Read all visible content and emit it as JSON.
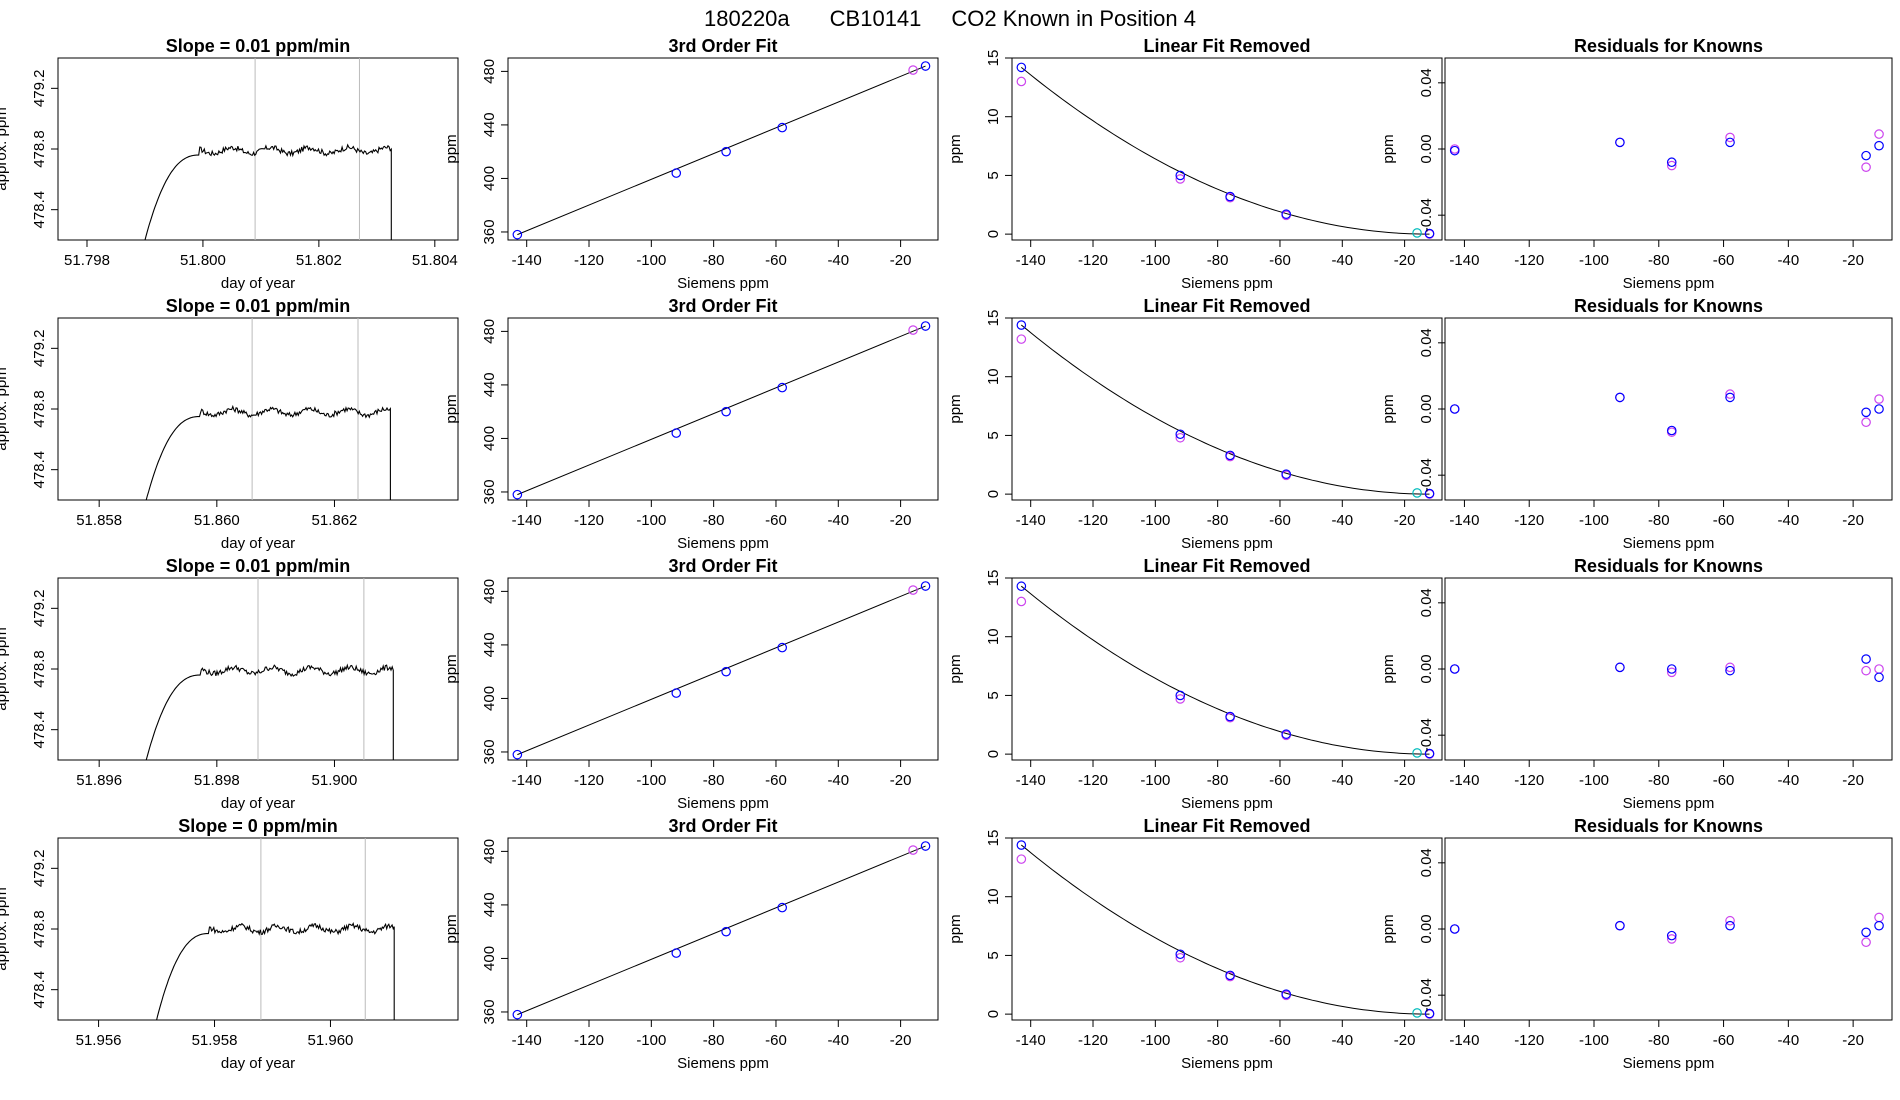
{
  "figure": {
    "title_date": "180220a",
    "title_tank": "CB10141",
    "title_text": "CO2 Known in Position  4"
  },
  "colors": {
    "primary": "#0000ff",
    "secondary": "#cc44ee",
    "tertiary": "#00bbbb",
    "line": "#000000",
    "vline": "#bbbbbb"
  },
  "chart_data": [
    {
      "type": "line",
      "row": 0,
      "panel": "timeseries",
      "title": "Slope =  0.01  ppm/min",
      "xlabel": "day of year",
      "ylabel": "approx. ppm",
      "xlim": [
        51.7975,
        51.8044
      ],
      "ylim": [
        478.2,
        479.4
      ],
      "xticks": [
        "51.798",
        "51.800",
        "51.802",
        "51.804"
      ],
      "yticks": [
        "478.4",
        "478.8",
        "479.2"
      ],
      "vlines": [
        51.8009,
        51.8027
      ],
      "start": 51.799,
      "end": 51.80325,
      "plateau": 478.79
    },
    {
      "type": "scatter",
      "row": 0,
      "panel": "fit",
      "title": "3rd Order Fit",
      "xlabel": "Siemens ppm",
      "ylabel": "ppm",
      "xlim": [
        -146,
        -8
      ],
      "ylim": [
        354,
        490
      ],
      "xticks": [
        "-140",
        "-120",
        "-100",
        "-80",
        "-60",
        "-40",
        "-20"
      ],
      "yticks": [
        "360",
        "400",
        "440",
        "480"
      ],
      "points": [
        [
          -143,
          358
        ],
        [
          -92,
          404
        ],
        [
          -76,
          420
        ],
        [
          -58,
          438
        ],
        [
          -12,
          484
        ],
        [
          -16,
          481
        ]
      ]
    },
    {
      "type": "scatter",
      "row": 0,
      "panel": "linear_removed",
      "title": "Linear Fit Removed",
      "xlabel": "Siemens ppm",
      "ylabel": "ppm",
      "xlim": [
        -146,
        -8
      ],
      "ylim": [
        -0.5,
        15
      ],
      "xticks": [
        "-140",
        "-120",
        "-100",
        "-80",
        "-60",
        "-40",
        "-20"
      ],
      "yticks": [
        "0",
        "5",
        "10",
        "15"
      ],
      "points_primary": [
        [
          -143,
          14.2
        ],
        [
          -92,
          5.0
        ],
        [
          -76,
          3.2
        ],
        [
          -58,
          1.7
        ],
        [
          -12,
          0.05
        ]
      ],
      "points_secondary": [
        [
          -143,
          13.0
        ],
        [
          -92,
          4.7
        ],
        [
          -76,
          3.1
        ],
        [
          -58,
          1.6
        ],
        [
          -12,
          0.0
        ]
      ],
      "points_tertiary": [
        [
          -16,
          0.1
        ]
      ]
    },
    {
      "type": "scatter",
      "row": 0,
      "panel": "residuals",
      "title": "Residuals for Knowns",
      "xlabel": "Siemens ppm",
      "ylabel": "ppm",
      "xlim": [
        -146,
        -8
      ],
      "ylim": [
        -0.055,
        0.055
      ],
      "xticks": [
        "-140",
        "-120",
        "-100",
        "-80",
        "-60",
        "-40",
        "-20"
      ],
      "yticks": [
        "-0.04",
        "0.00",
        "0.04"
      ],
      "points_primary": [
        [
          -143,
          -0.001
        ],
        [
          -92,
          0.004
        ],
        [
          -76,
          -0.008
        ],
        [
          -58,
          0.004
        ],
        [
          -16,
          -0.004
        ],
        [
          -12,
          0.002
        ]
      ],
      "points_secondary": [
        [
          -143,
          0.0
        ],
        [
          -92,
          0.004
        ],
        [
          -76,
          -0.01
        ],
        [
          -58,
          0.007
        ],
        [
          -16,
          -0.011
        ],
        [
          -12,
          0.009
        ]
      ]
    },
    {
      "type": "line",
      "row": 1,
      "panel": "timeseries",
      "title": "Slope =  0.01  ppm/min",
      "xlabel": "day of year",
      "ylabel": "approx. ppm",
      "xlim": [
        51.8573,
        51.8641
      ],
      "ylim": [
        478.2,
        479.4
      ],
      "xticks": [
        "51.858",
        "51.860",
        "51.862"
      ],
      "yticks": [
        "478.4",
        "478.8",
        "479.2"
      ],
      "vlines": [
        51.8606,
        51.8624
      ],
      "start": 51.8588,
      "end": 51.86295,
      "plateau": 478.78
    },
    {
      "type": "scatter",
      "row": 1,
      "panel": "fit",
      "title": "3rd Order Fit",
      "xlabel": "Siemens ppm",
      "ylabel": "ppm",
      "xlim": [
        -146,
        -8
      ],
      "ylim": [
        354,
        490
      ],
      "xticks": [
        "-140",
        "-120",
        "-100",
        "-80",
        "-60",
        "-40",
        "-20"
      ],
      "yticks": [
        "360",
        "400",
        "440",
        "480"
      ],
      "points": [
        [
          -143,
          358
        ],
        [
          -92,
          404
        ],
        [
          -76,
          420
        ],
        [
          -58,
          438
        ],
        [
          -12,
          484
        ],
        [
          -16,
          481
        ]
      ]
    },
    {
      "type": "scatter",
      "row": 1,
      "panel": "linear_removed",
      "title": "Linear Fit Removed",
      "xlabel": "Siemens ppm",
      "ylabel": "ppm",
      "xlim": [
        -146,
        -8
      ],
      "ylim": [
        -0.5,
        15
      ],
      "xticks": [
        "-140",
        "-120",
        "-100",
        "-80",
        "-60",
        "-40",
        "-20"
      ],
      "yticks": [
        "0",
        "5",
        "10",
        "15"
      ],
      "points_primary": [
        [
          -143,
          14.4
        ],
        [
          -92,
          5.1
        ],
        [
          -76,
          3.3
        ],
        [
          -58,
          1.7
        ],
        [
          -12,
          0.05
        ]
      ],
      "points_secondary": [
        [
          -143,
          13.2
        ],
        [
          -92,
          4.8
        ],
        [
          -76,
          3.2
        ],
        [
          -58,
          1.6
        ],
        [
          -12,
          0.0
        ]
      ],
      "points_tertiary": [
        [
          -16,
          0.1
        ]
      ]
    },
    {
      "type": "scatter",
      "row": 1,
      "panel": "residuals",
      "title": "Residuals for Knowns",
      "xlabel": "Siemens ppm",
      "ylabel": "ppm",
      "xlim": [
        -146,
        -8
      ],
      "ylim": [
        -0.055,
        0.055
      ],
      "xticks": [
        "-140",
        "-120",
        "-100",
        "-80",
        "-60",
        "-40",
        "-20"
      ],
      "yticks": [
        "-0.04",
        "0.00",
        "0.04"
      ],
      "points_primary": [
        [
          -143,
          0.0
        ],
        [
          -92,
          0.007
        ],
        [
          -76,
          -0.013
        ],
        [
          -58,
          0.007
        ],
        [
          -16,
          -0.002
        ],
        [
          -12,
          0.0
        ]
      ],
      "points_secondary": [
        [
          -143,
          0.0
        ],
        [
          -92,
          0.007
        ],
        [
          -76,
          -0.014
        ],
        [
          -58,
          0.009
        ],
        [
          -16,
          -0.008
        ],
        [
          -12,
          0.006
        ]
      ]
    },
    {
      "type": "line",
      "row": 2,
      "panel": "timeseries",
      "title": "Slope =  0.01  ppm/min",
      "xlabel": "day of year",
      "ylabel": "approx. ppm",
      "xlim": [
        51.8953,
        51.9021
      ],
      "ylim": [
        478.2,
        479.4
      ],
      "xticks": [
        "51.896",
        "51.898",
        "51.900"
      ],
      "yticks": [
        "478.4",
        "478.8",
        "479.2"
      ],
      "vlines": [
        51.8987,
        51.9005
      ],
      "start": 51.8968,
      "end": 51.901,
      "plateau": 478.79
    },
    {
      "type": "scatter",
      "row": 2,
      "panel": "fit",
      "title": "3rd Order Fit",
      "xlabel": "Siemens ppm",
      "ylabel": "ppm",
      "xlim": [
        -146,
        -8
      ],
      "ylim": [
        354,
        490
      ],
      "xticks": [
        "-140",
        "-120",
        "-100",
        "-80",
        "-60",
        "-40",
        "-20"
      ],
      "yticks": [
        "360",
        "400",
        "440",
        "480"
      ],
      "points": [
        [
          -143,
          358
        ],
        [
          -92,
          404
        ],
        [
          -76,
          420
        ],
        [
          -58,
          438
        ],
        [
          -12,
          484
        ],
        [
          -16,
          481
        ]
      ]
    },
    {
      "type": "scatter",
      "row": 2,
      "panel": "linear_removed",
      "title": "Linear Fit Removed",
      "xlabel": "Siemens ppm",
      "ylabel": "ppm",
      "xlim": [
        -146,
        -8
      ],
      "ylim": [
        -0.5,
        15
      ],
      "xticks": [
        "-140",
        "-120",
        "-100",
        "-80",
        "-60",
        "-40",
        "-20"
      ],
      "yticks": [
        "0",
        "5",
        "10",
        "15"
      ],
      "points_primary": [
        [
          -143,
          14.3
        ],
        [
          -92,
          5.0
        ],
        [
          -76,
          3.2
        ],
        [
          -58,
          1.7
        ],
        [
          -12,
          0.05
        ]
      ],
      "points_secondary": [
        [
          -143,
          13.0
        ],
        [
          -92,
          4.7
        ],
        [
          -76,
          3.1
        ],
        [
          -58,
          1.6
        ],
        [
          -12,
          0.0
        ]
      ],
      "points_tertiary": [
        [
          -16,
          0.1
        ]
      ]
    },
    {
      "type": "scatter",
      "row": 2,
      "panel": "residuals",
      "title": "Residuals for Knowns",
      "xlabel": "Siemens ppm",
      "ylabel": "ppm",
      "xlim": [
        -146,
        -8
      ],
      "ylim": [
        -0.055,
        0.055
      ],
      "xticks": [
        "-140",
        "-120",
        "-100",
        "-80",
        "-60",
        "-40",
        "-20"
      ],
      "yticks": [
        "-0.04",
        "0.00",
        "0.04"
      ],
      "points_primary": [
        [
          -143,
          0.0
        ],
        [
          -92,
          0.001
        ],
        [
          -76,
          0.0
        ],
        [
          -58,
          -0.001
        ],
        [
          -16,
          0.006
        ],
        [
          -12,
          -0.005
        ]
      ],
      "points_secondary": [
        [
          -143,
          0.0
        ],
        [
          -92,
          0.001
        ],
        [
          -76,
          -0.002
        ],
        [
          -58,
          0.001
        ],
        [
          -16,
          -0.001
        ],
        [
          -12,
          0.0
        ]
      ]
    },
    {
      "type": "line",
      "row": 3,
      "panel": "timeseries",
      "title": "Slope =  0  ppm/min",
      "xlabel": "day of year",
      "ylabel": "approx. ppm",
      "xlim": [
        51.9553,
        51.9622
      ],
      "ylim": [
        478.2,
        479.4
      ],
      "xticks": [
        "51.956",
        "51.958",
        "51.960"
      ],
      "yticks": [
        "478.4",
        "478.8",
        "479.2"
      ],
      "vlines": [
        51.9588,
        51.9606
      ],
      "start": 51.957,
      "end": 51.9611,
      "plateau": 478.8
    },
    {
      "type": "scatter",
      "row": 3,
      "panel": "fit",
      "title": "3rd Order Fit",
      "xlabel": "Siemens ppm",
      "ylabel": "ppm",
      "xlim": [
        -146,
        -8
      ],
      "ylim": [
        354,
        490
      ],
      "xticks": [
        "-140",
        "-120",
        "-100",
        "-80",
        "-60",
        "-40",
        "-20"
      ],
      "yticks": [
        "360",
        "400",
        "440",
        "480"
      ],
      "points": [
        [
          -143,
          358
        ],
        [
          -92,
          404
        ],
        [
          -76,
          420
        ],
        [
          -58,
          438
        ],
        [
          -12,
          484
        ],
        [
          -16,
          481
        ]
      ]
    },
    {
      "type": "scatter",
      "row": 3,
      "panel": "linear_removed",
      "title": "Linear Fit Removed",
      "xlabel": "Siemens ppm",
      "ylabel": "ppm",
      "xlim": [
        -146,
        -8
      ],
      "ylim": [
        -0.5,
        15
      ],
      "xticks": [
        "-140",
        "-120",
        "-100",
        "-80",
        "-60",
        "-40",
        "-20"
      ],
      "yticks": [
        "0",
        "5",
        "10",
        "15"
      ],
      "points_primary": [
        [
          -143,
          14.4
        ],
        [
          -92,
          5.1
        ],
        [
          -76,
          3.3
        ],
        [
          -58,
          1.7
        ],
        [
          -12,
          0.05
        ]
      ],
      "points_secondary": [
        [
          -143,
          13.2
        ],
        [
          -92,
          4.8
        ],
        [
          -76,
          3.2
        ],
        [
          -58,
          1.6
        ],
        [
          -12,
          0.0
        ]
      ],
      "points_tertiary": [
        [
          -16,
          0.1
        ]
      ]
    },
    {
      "type": "scatter",
      "row": 3,
      "panel": "residuals",
      "title": "Residuals for Knowns",
      "xlabel": "Siemens ppm",
      "ylabel": "ppm",
      "xlim": [
        -146,
        -8
      ],
      "ylim": [
        -0.055,
        0.055
      ],
      "xticks": [
        "-140",
        "-120",
        "-100",
        "-80",
        "-60",
        "-40",
        "-20"
      ],
      "yticks": [
        "-0.04",
        "0.00",
        "0.04"
      ],
      "points_primary": [
        [
          -143,
          0.0
        ],
        [
          -92,
          0.002
        ],
        [
          -76,
          -0.004
        ],
        [
          -58,
          0.002
        ],
        [
          -16,
          -0.002
        ],
        [
          -12,
          0.002
        ]
      ],
      "points_secondary": [
        [
          -143,
          0.0
        ],
        [
          -92,
          0.002
        ],
        [
          -76,
          -0.006
        ],
        [
          -58,
          0.005
        ],
        [
          -16,
          -0.008
        ],
        [
          -12,
          0.007
        ]
      ]
    }
  ]
}
